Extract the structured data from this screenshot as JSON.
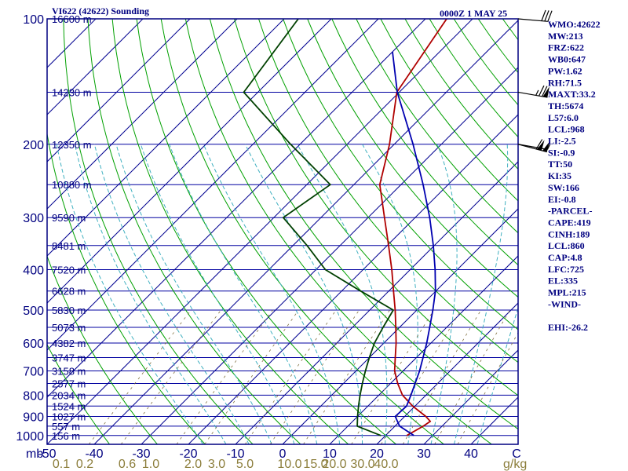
{
  "title_left": "VI622 (42622) Sounding",
  "title_right": "0000Z  1 MAY 25",
  "pressure_unit": "mb",
  "mixing_unit": "g/kg",
  "chart_data": {
    "type": "line",
    "title": "VI622 (42622) Sounding",
    "xlabel": "",
    "ylabel": "mb",
    "ylog": true,
    "xlim": [
      -50,
      50
    ],
    "ylim": [
      1050,
      100
    ],
    "pressure_ticks": [
      100,
      200,
      300,
      400,
      500,
      600,
      700,
      800,
      900,
      1000
    ],
    "temp_ticks": [
      -50,
      -40,
      -30,
      -20,
      -10,
      0,
      10,
      20,
      30,
      40
    ],
    "mixing_ticks": [
      {
        "label": "0.1",
        "t": -47
      },
      {
        "label": "0.2",
        "t": -42
      },
      {
        "label": "0.6",
        "t": -33
      },
      {
        "label": "1.0",
        "t": -28
      },
      {
        "label": "2.0",
        "t": -19
      },
      {
        "label": "3.0",
        "t": -14
      },
      {
        "label": "5.0",
        "t": -8
      },
      {
        "label": "10.0",
        "t": 1.5
      },
      {
        "label": "15.0",
        "t": 7
      },
      {
        "label": "20.0",
        "t": 11
      },
      {
        "label": "30.0",
        "t": 17
      },
      {
        "label": "40.0",
        "t": 22
      }
    ],
    "height_labels": [
      {
        "p": 100,
        "label": "16600 m"
      },
      {
        "p": 150,
        "label": "14230 m"
      },
      {
        "p": 200,
        "label": "12350 m"
      },
      {
        "p": 250,
        "label": "10880 m"
      },
      {
        "p": 300,
        "label": "9590 m"
      },
      {
        "p": 350,
        "label": "8481 m"
      },
      {
        "p": 400,
        "label": "7520 m"
      },
      {
        "p": 450,
        "label": "6628 m"
      },
      {
        "p": 500,
        "label": "5830 m"
      },
      {
        "p": 550,
        "label": "5073 m"
      },
      {
        "p": 600,
        "label": "4382 m"
      },
      {
        "p": 650,
        "label": "3747 m"
      },
      {
        "p": 700,
        "label": "3158 m"
      },
      {
        "p": 750,
        "label": "2577 m"
      },
      {
        "p": 800,
        "label": "2034 m"
      },
      {
        "p": 850,
        "label": "1524 m"
      },
      {
        "p": 900,
        "label": "1027 m"
      },
      {
        "p": 950,
        "label": "557 m"
      },
      {
        "p": 1000,
        "label": "156 m"
      }
    ],
    "series": [
      {
        "name": "Temperature",
        "color": "#b00000",
        "points": [
          [
            1000,
            24.5
          ],
          [
            950,
            26
          ],
          [
            925,
            26.5
          ],
          [
            900,
            24.5
          ],
          [
            850,
            19.5
          ],
          [
            800,
            15
          ],
          [
            750,
            11.5
          ],
          [
            700,
            8.2
          ],
          [
            650,
            5.5
          ],
          [
            600,
            2.6
          ],
          [
            550,
            -0.8
          ],
          [
            500,
            -4.6
          ],
          [
            450,
            -9
          ],
          [
            400,
            -13.9
          ],
          [
            350,
            -19.7
          ],
          [
            300,
            -26.5
          ],
          [
            250,
            -34.5
          ],
          [
            200,
            -41
          ],
          [
            150,
            -50.5
          ],
          [
            100,
            -55.5
          ]
        ]
      },
      {
        "name": "Dewpoint",
        "color": "#004000",
        "points": [
          [
            1000,
            19
          ],
          [
            950,
            12
          ],
          [
            900,
            10
          ],
          [
            850,
            8
          ],
          [
            800,
            6
          ],
          [
            750,
            4
          ],
          [
            700,
            2
          ],
          [
            650,
            0
          ],
          [
            600,
            -2
          ],
          [
            550,
            -3.5
          ],
          [
            500,
            -5
          ],
          [
            450,
            -16
          ],
          [
            400,
            -28
          ],
          [
            350,
            -37
          ],
          [
            300,
            -48
          ],
          [
            250,
            -45
          ],
          [
            200,
            -62
          ],
          [
            150,
            -83
          ],
          [
            100,
            -87
          ]
        ]
      },
      {
        "name": "Parcel",
        "color": "#0000b0",
        "points": [
          [
            1000,
            26
          ],
          [
            950,
            21
          ],
          [
            900,
            18
          ],
          [
            850,
            18.2
          ],
          [
            800,
            16.8
          ],
          [
            750,
            15.2
          ],
          [
            700,
            13.5
          ],
          [
            650,
            11.4
          ],
          [
            600,
            9.1
          ],
          [
            550,
            6.4
          ],
          [
            500,
            3.4
          ],
          [
            450,
            -0.1
          ],
          [
            400,
            -4.7
          ],
          [
            350,
            -10.2
          ],
          [
            300,
            -16.9
          ],
          [
            250,
            -25.3
          ],
          [
            200,
            -36
          ],
          [
            150,
            -50.4
          ],
          [
            120,
            -60
          ]
        ]
      }
    ],
    "winds": [
      {
        "p": 100,
        "dir": 275,
        "kt": 30
      },
      {
        "p": 150,
        "dir": 280,
        "kt": 75
      },
      {
        "p": 200,
        "dir": 285,
        "kt": 110
      },
      {
        "p": 200,
        "dir": 280,
        "kt": 5
      }
    ]
  },
  "indices": [
    "WMO:42622",
    "MW:213",
    "FRZ:622",
    "WB0:647",
    "PW:1.62",
    "RH:71.5",
    "MAXT:33.2",
    "TH:5674",
    "L57:6.0",
    "LCL:968",
    "LI:-2.5",
    "SI:-0.9",
    "TT:50",
    "KI:35",
    "SW:166",
    "EI:-0.8",
    "-PARCEL-",
    "CAPE:419",
    "CINH:189",
    "LCL:860",
    "CAP:4.8",
    "LFC:725",
    "EL:335",
    "MPL:215",
    "-WIND-",
    "",
    "EHI:-26.2"
  ],
  "colors": {
    "frame": "#000080",
    "isobar": "#0000a0",
    "isotherm": "#000090",
    "dry_adiabat": "#00a000",
    "moist_adiabat": "#40b0c0",
    "mixing_ratio": "#807040"
  }
}
